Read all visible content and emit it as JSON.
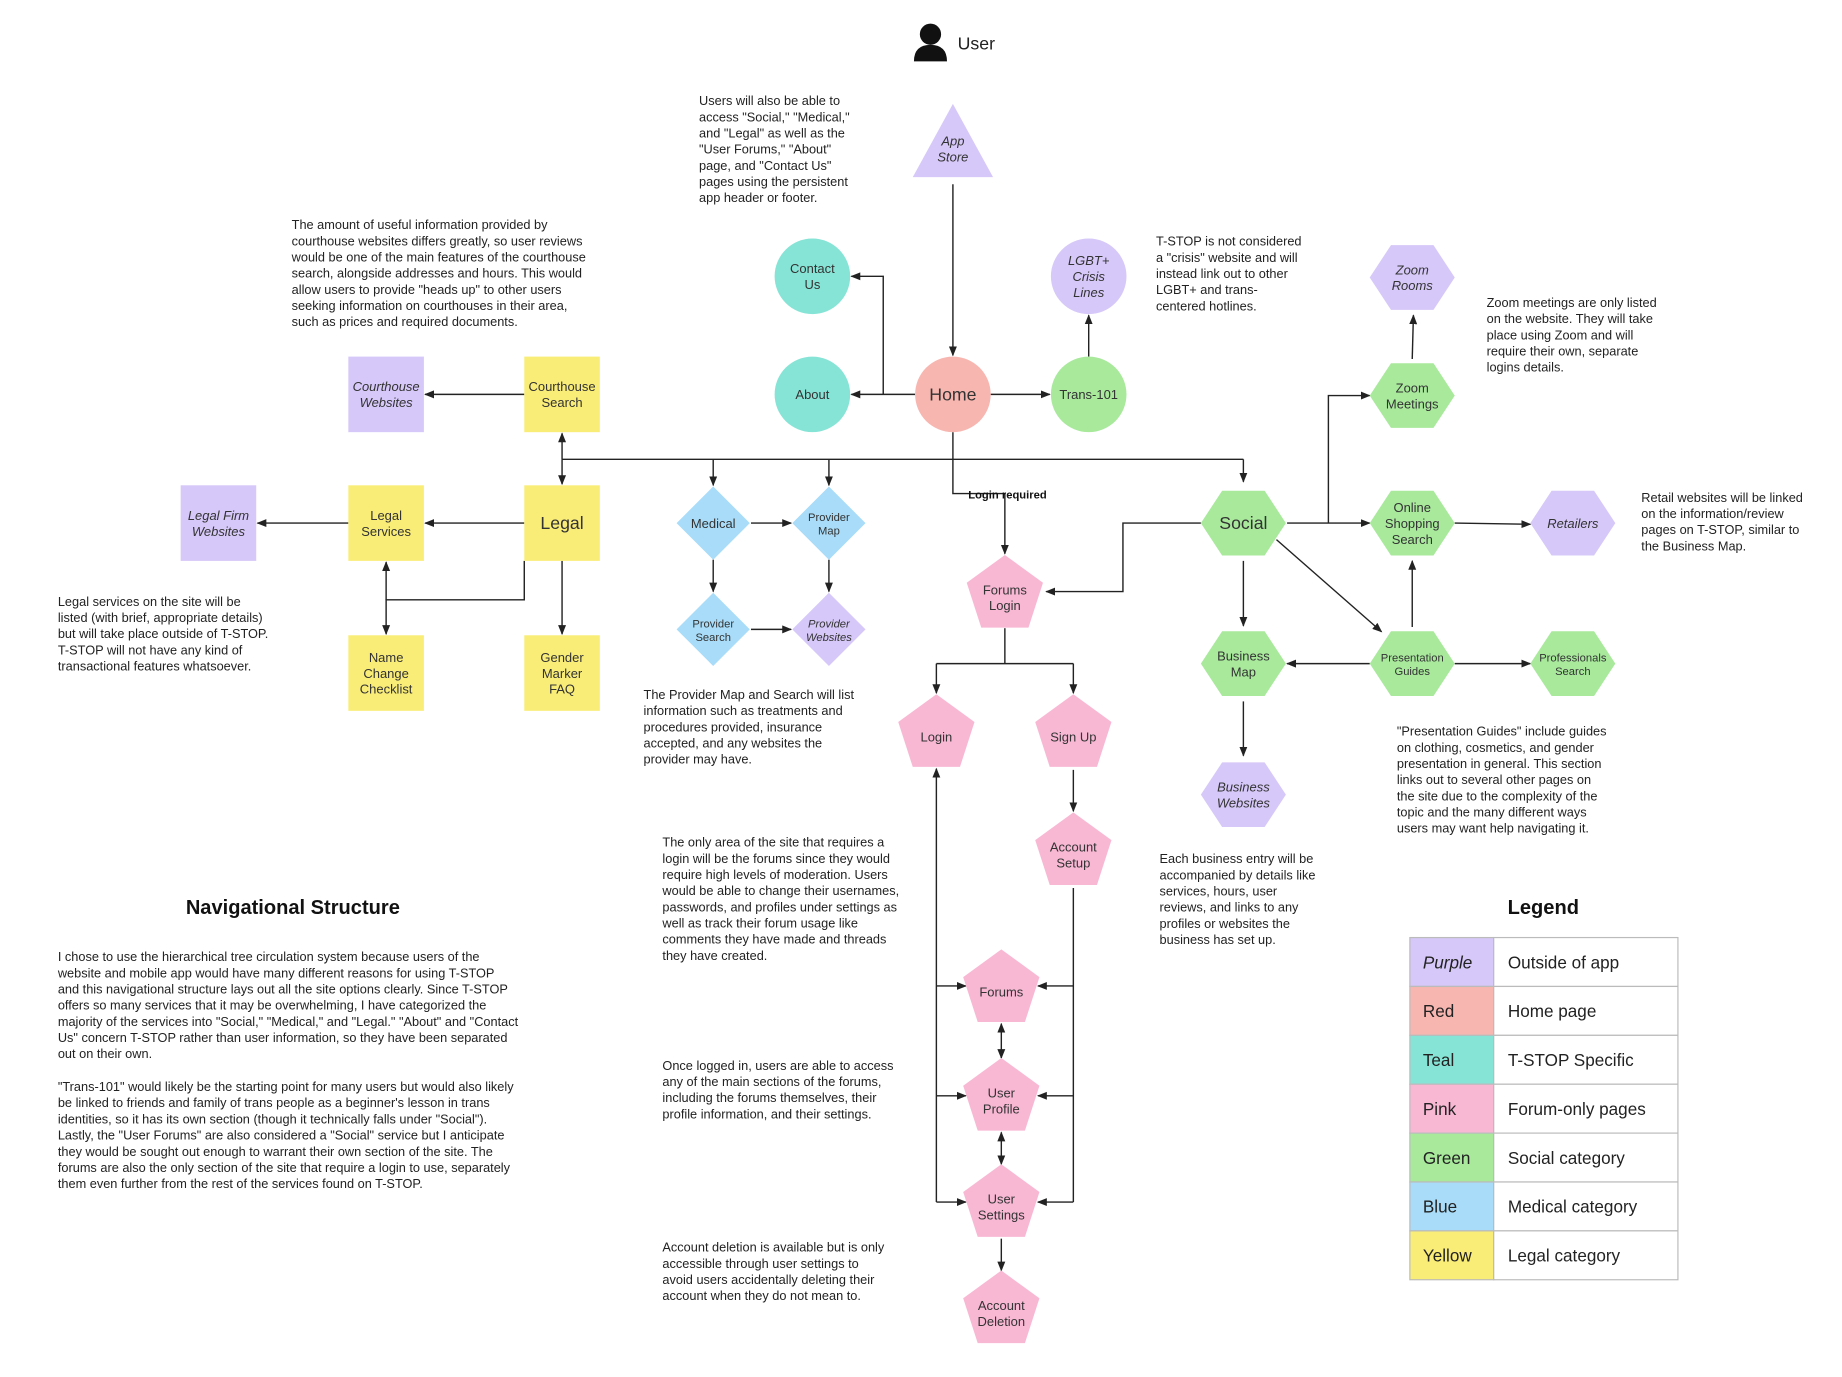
{
  "user": {
    "label": "User",
    "icon": "user-icon"
  },
  "colors": {
    "purple": "#d6c8f8",
    "red": "#f8b6b0",
    "teal": "#86e4d6",
    "pink": "#f8b8d4",
    "green": "#a8e99c",
    "blue": "#a8dcf8",
    "yellow": "#f9ed78"
  },
  "nodes": {
    "appstore": {
      "label": [
        "App",
        "Store"
      ],
      "category": "purple",
      "shape": "triangle",
      "italic": true
    },
    "contact": {
      "label": [
        "Contact",
        "Us"
      ],
      "category": "teal",
      "shape": "circle"
    },
    "about": {
      "label": [
        "About"
      ],
      "category": "teal",
      "shape": "circle"
    },
    "home": {
      "label": [
        "Home"
      ],
      "category": "red",
      "shape": "circle"
    },
    "trans101": {
      "label": [
        "Trans-101"
      ],
      "category": "green",
      "shape": "circle"
    },
    "crisis": {
      "label": [
        "LGBT+",
        "Crisis",
        "Lines"
      ],
      "category": "purple",
      "shape": "circle",
      "italic": true
    },
    "courthouse_websites": {
      "label": [
        "Courthouse",
        "Websites"
      ],
      "category": "purple",
      "shape": "square",
      "italic": true
    },
    "courthouse_search": {
      "label": [
        "Courthouse",
        "Search"
      ],
      "category": "yellow",
      "shape": "square"
    },
    "legal": {
      "label": [
        "Legal"
      ],
      "category": "yellow",
      "shape": "square"
    },
    "legal_services": {
      "label": [
        "Legal",
        "Services"
      ],
      "category": "yellow",
      "shape": "square"
    },
    "legal_firm": {
      "label": [
        "Legal Firm",
        "Websites"
      ],
      "category": "purple",
      "shape": "square",
      "italic": true
    },
    "name_change": {
      "label": [
        "Name",
        "Change",
        "Checklist"
      ],
      "category": "yellow",
      "shape": "square"
    },
    "gender_marker": {
      "label": [
        "Gender",
        "Marker",
        "FAQ"
      ],
      "category": "yellow",
      "shape": "square"
    },
    "medical": {
      "label": [
        "Medical"
      ],
      "category": "blue",
      "shape": "diamond"
    },
    "provider_map": {
      "label": [
        "Provider",
        "Map"
      ],
      "category": "blue",
      "shape": "diamond"
    },
    "provider_search": {
      "label": [
        "Provider",
        "Search"
      ],
      "category": "blue",
      "shape": "diamond"
    },
    "provider_websites": {
      "label": [
        "Provider",
        "Websites"
      ],
      "category": "purple",
      "shape": "diamond",
      "italic": true
    },
    "forums_login": {
      "label": [
        "Forums",
        "Login"
      ],
      "category": "pink",
      "shape": "pentagon"
    },
    "login": {
      "label": [
        "Login"
      ],
      "category": "pink",
      "shape": "pentagon"
    },
    "signup": {
      "label": [
        "Sign Up"
      ],
      "category": "pink",
      "shape": "pentagon"
    },
    "account_setup": {
      "label": [
        "Account",
        "Setup"
      ],
      "category": "pink",
      "shape": "pentagon"
    },
    "forums": {
      "label": [
        "Forums"
      ],
      "category": "pink",
      "shape": "pentagon"
    },
    "user_profile": {
      "label": [
        "User",
        "Profile"
      ],
      "category": "pink",
      "shape": "pentagon"
    },
    "user_settings": {
      "label": [
        "User",
        "Settings"
      ],
      "category": "pink",
      "shape": "pentagon"
    },
    "account_deletion": {
      "label": [
        "Account",
        "Deletion"
      ],
      "category": "pink",
      "shape": "pentagon"
    },
    "social": {
      "label": [
        "Social"
      ],
      "category": "green",
      "shape": "hexagon"
    },
    "zoom_rooms": {
      "label": [
        "Zoom",
        "Rooms"
      ],
      "category": "purple",
      "shape": "hexagon",
      "italic": true
    },
    "zoom_meetings": {
      "label": [
        "Zoom",
        "Meetings"
      ],
      "category": "green",
      "shape": "hexagon"
    },
    "online_shopping": {
      "label": [
        "Online",
        "Shopping",
        "Search"
      ],
      "category": "green",
      "shape": "hexagon"
    },
    "retailers": {
      "label": [
        "Retailers"
      ],
      "category": "purple",
      "shape": "hexagon",
      "italic": true
    },
    "presentation_guides": {
      "label": [
        "Presentation",
        "Guides"
      ],
      "category": "green",
      "shape": "hexagon"
    },
    "professionals_search": {
      "label": [
        "Professionals",
        "Search"
      ],
      "category": "green",
      "shape": "hexagon"
    },
    "business_map": {
      "label": [
        "Business",
        "Map"
      ],
      "category": "green",
      "shape": "hexagon"
    },
    "business_websites": {
      "label": [
        "Business",
        "Websites"
      ],
      "category": "purple",
      "shape": "hexagon",
      "italic": true
    }
  },
  "edge_labels": {
    "login_required": "Login required"
  },
  "notes": {
    "header_access": [
      "Users will also be able to",
      "access \"Social,\" \"Medical,\"",
      "and \"Legal\" as well as the",
      "\"User Forums,\" \"About\"",
      "page, and \"Contact Us\"",
      "pages using the persistent",
      "app header or footer."
    ],
    "courthouse": [
      "The amount of useful information provided by",
      "courthouse websites differs greatly, so user reviews",
      "would be one of the main features of the courthouse",
      "search, alongside addresses and hours. This would",
      "allow users to provide \"heads up\" to other users",
      "seeking information on courthouses in their area,",
      "such as prices and required documents."
    ],
    "crisis": [
      "T-STOP is not considered",
      "a \"crisis\" website and will",
      "instead link out to other",
      "LGBT+ and trans-",
      "centered hotlines."
    ],
    "zoom": [
      "Zoom meetings are only listed",
      "on the website. They will take",
      "place using Zoom and will",
      "require their own, separate",
      "logins details."
    ],
    "retail": [
      "Retail websites will be linked",
      "on the information/review",
      "pages on T-STOP, similar to",
      "the Business Map."
    ],
    "legal_services": [
      "Legal services on the site will be",
      "listed (with brief, appropriate details)",
      "but will take place outside of T-STOP.",
      "T-STOP will not have any kind of",
      "transactional features whatsoever."
    ],
    "provider": [
      "The Provider Map and Search will list",
      "information such as treatments and",
      "procedures provided, insurance",
      "accepted, and any websites the",
      "provider may have."
    ],
    "presentation": [
      "\"Presentation Guides\" include guides",
      "on clothing, cosmetics, and gender",
      "presentation in general. This section",
      "links out to several other pages on",
      "the site due to the complexity of the",
      "topic and the many different ways",
      "users may want help navigating it."
    ],
    "login_area": [
      "The only area of the site that requires a",
      "login will be the forums since they would",
      "require high levels of moderation. Users",
      "would be able to change their usernames,",
      "passwords, and profiles under settings as",
      "well as track their forum usage like",
      "comments they have made and threads",
      "they have created."
    ],
    "business": [
      "Each business entry will be",
      "accompanied by details like",
      "services, hours, user",
      "reviews, and links to any",
      "profiles or websites the",
      "business has set up."
    ],
    "logged_in": [
      "Once logged in, users are able to access",
      "any of the main sections of the forums,",
      "including the forums themselves, their",
      "profile information, and their settings."
    ],
    "deletion": [
      "Account deletion is available but is only",
      "accessible through user settings to",
      "avoid users accidentally deleting their",
      "account when they do not mean to."
    ],
    "nav_p1": [
      "I chose to use the hierarchical tree circulation system because users of the",
      "website and mobile app would have many different reasons for using T-STOP",
      "and this navigational structure lays out all the site options clearly. Since T-STOP",
      "offers so many services that it may be overwhelming, I have categorized the",
      "majority of the services into \"Social,\" \"Medical,\" and \"Legal.\" \"About\" and \"Contact",
      "Us\" concern T-STOP rather than user information, so they have been separated",
      "out on their own."
    ],
    "nav_p2": [
      "\"Trans-101\" would likely be the starting point for many users but would also likely",
      "be linked to friends and family of trans people as a beginner's lesson in trans",
      "identities, so it has its own section (though it technically falls under \"Social\").",
      "Lastly, the \"User Forums\" are also considered a \"Social\" service but I anticipate",
      "they would be sought out enough to warrant their own section of the site. The",
      "forums are also the only section of the site that require a login to use, separately",
      "them even further from the rest of the services found on T-STOP."
    ]
  },
  "nav_heading": "Navigational Structure",
  "legend": {
    "title": "Legend",
    "rows": [
      {
        "color": "purple",
        "name": "Purple",
        "meaning": "Outside of app",
        "italic": true
      },
      {
        "color": "red",
        "name": "Red",
        "meaning": "Home page"
      },
      {
        "color": "teal",
        "name": "Teal",
        "meaning": "T-STOP Specific"
      },
      {
        "color": "pink",
        "name": "Pink",
        "meaning": "Forum-only pages"
      },
      {
        "color": "green",
        "name": "Green",
        "meaning": "Social category"
      },
      {
        "color": "blue",
        "name": "Blue",
        "meaning": "Medical category"
      },
      {
        "color": "yellow",
        "name": "Yellow",
        "meaning": "Legal category"
      }
    ]
  }
}
